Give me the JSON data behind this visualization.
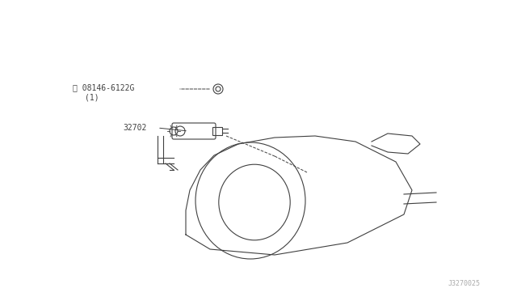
{
  "bg_color": "#ffffff",
  "line_color": "#404040",
  "label_color": "#404040",
  "fig_width": 6.4,
  "fig_height": 3.72,
  "dpi": 100,
  "title": "",
  "watermark": "J3270025",
  "part_label_1": "Ⓑ 08146-6122G",
  "part_label_1b": "(1)",
  "part_label_2": "32702",
  "font_size": 7
}
